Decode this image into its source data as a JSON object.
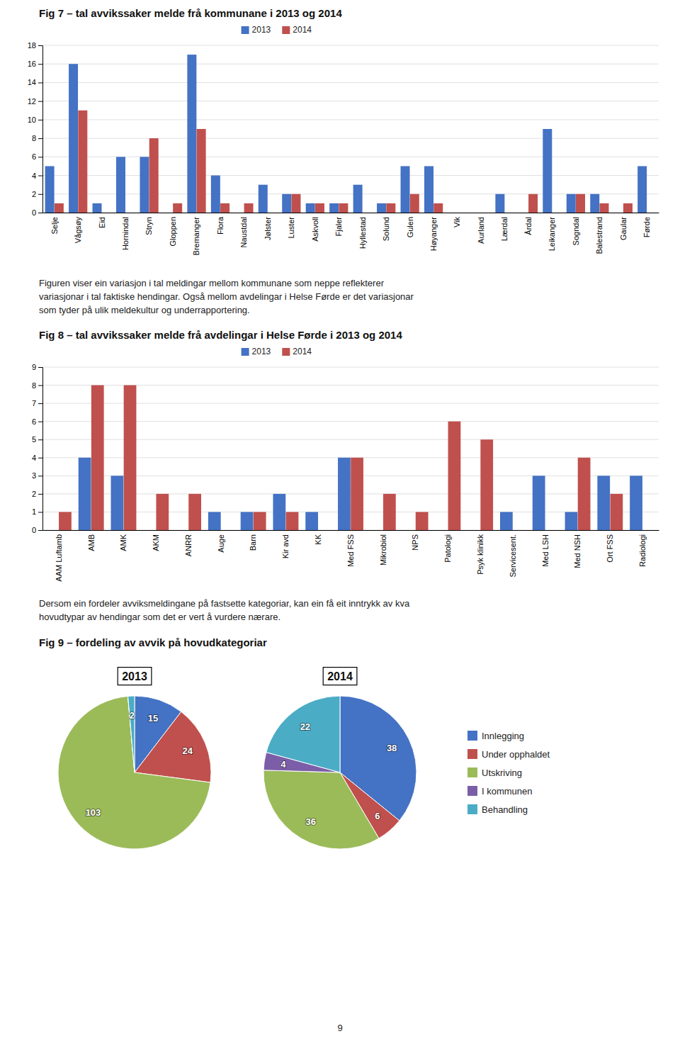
{
  "chart_data": [
    {
      "type": "bar",
      "title": "Fig 7 – tal avvikssaker melde frå kommunane i 2013 og 2014",
      "categories": [
        "Selje",
        "Vågsøy",
        "Eid",
        "Hornindal",
        "Stryn",
        "Gloppen",
        "Bremanger",
        "Flora",
        "Naustdal",
        "Jølster",
        "Luster",
        "Askvoll",
        "Fjaler",
        "Hyllestad",
        "Solund",
        "Gulen",
        "Høyanger",
        "Vik",
        "Aurland",
        "Lærdal",
        "Årdal",
        "Leikanger",
        "Sogndal",
        "Balestrand",
        "Gaular",
        "Førde"
      ],
      "series": [
        {
          "name": "2013",
          "color": "#4472C4",
          "values": [
            5,
            16,
            1,
            6,
            6,
            0,
            17,
            4,
            0,
            3,
            2,
            1,
            1,
            3,
            1,
            5,
            5,
            0,
            0,
            2,
            0,
            9,
            2,
            2,
            0,
            5
          ]
        },
        {
          "name": "2014",
          "color": "#C0504D",
          "values": [
            1,
            11,
            0,
            0,
            8,
            1,
            9,
            1,
            1,
            0,
            2,
            1,
            1,
            0,
            1,
            2,
            1,
            0,
            0,
            0,
            2,
            0,
            2,
            1,
            1,
            0
          ]
        }
      ],
      "ylim": [
        0,
        18
      ],
      "yticks": [
        0,
        2,
        4,
        6,
        8,
        10,
        12,
        14,
        16,
        18
      ],
      "grid": true,
      "legend": "top",
      "annotations": [
        "Figuren viser ein variasjon i tal meldingar mellom kommunane som neppe reflekterer\nvariasjonar i tal faktiske hendingar. Også mellom avdelingar i Helse Førde er det variasjonar\nsom tyder på ulik meldekultur og underrapportering."
      ]
    },
    {
      "type": "bar",
      "title": "Fig 8 – tal avvikssaker melde frå avdelingar i Helse Førde i 2013 og 2014",
      "categories": [
        "AAM Luftamb",
        "AMB",
        "AMK",
        "AKM",
        "ANRR",
        "Auge",
        "Barn",
        "Kir avd",
        "KK",
        "Med FSS",
        "Mikrobiol",
        "NPS",
        "Patologi",
        "Psyk klinikk",
        "Servicesent.",
        "Med LSH",
        "Med NSH",
        "Ort FSS",
        "Radiologi"
      ],
      "series": [
        {
          "name": "2013",
          "color": "#4472C4",
          "values": [
            0,
            4,
            3,
            0,
            0,
            1,
            1,
            2,
            1,
            4,
            0,
            0,
            0,
            0,
            1,
            3,
            1,
            3,
            3
          ]
        },
        {
          "name": "2014",
          "color": "#C0504D",
          "values": [
            1,
            8,
            8,
            2,
            2,
            0,
            1,
            1,
            0,
            4,
            2,
            1,
            6,
            5,
            0,
            0,
            4,
            2,
            0
          ]
        }
      ],
      "ylim": [
        0,
        9
      ],
      "yticks": [
        0,
        1,
        2,
        3,
        4,
        5,
        6,
        7,
        8,
        9
      ],
      "grid": true,
      "legend": "top",
      "annotations": [
        "Dersom ein fordeler avviksmeldingane på fastsette kategoriar, kan ein få eit inntrykk av kva\nhovudtypar av hendingar som det er vert å vurdere nærare."
      ]
    },
    {
      "type": "pie",
      "title": "Fig 9 – fordeling av avvik på hovudkategoriar",
      "categories": [
        "Innlegging",
        "Under opphaldet",
        "Utskriving",
        "I kommunen",
        "Behandling"
      ],
      "colors": [
        "#4472C4",
        "#C0504D",
        "#9BBB59",
        "#7B5EA7",
        "#4BACC6"
      ],
      "series": [
        {
          "name": "2013",
          "values": [
            15,
            24,
            103,
            0,
            2
          ]
        },
        {
          "name": "2014",
          "values": [
            38,
            6,
            36,
            4,
            22
          ]
        }
      ],
      "data_labels": true,
      "legend": "right",
      "annotations": [
        "9"
      ]
    }
  ]
}
